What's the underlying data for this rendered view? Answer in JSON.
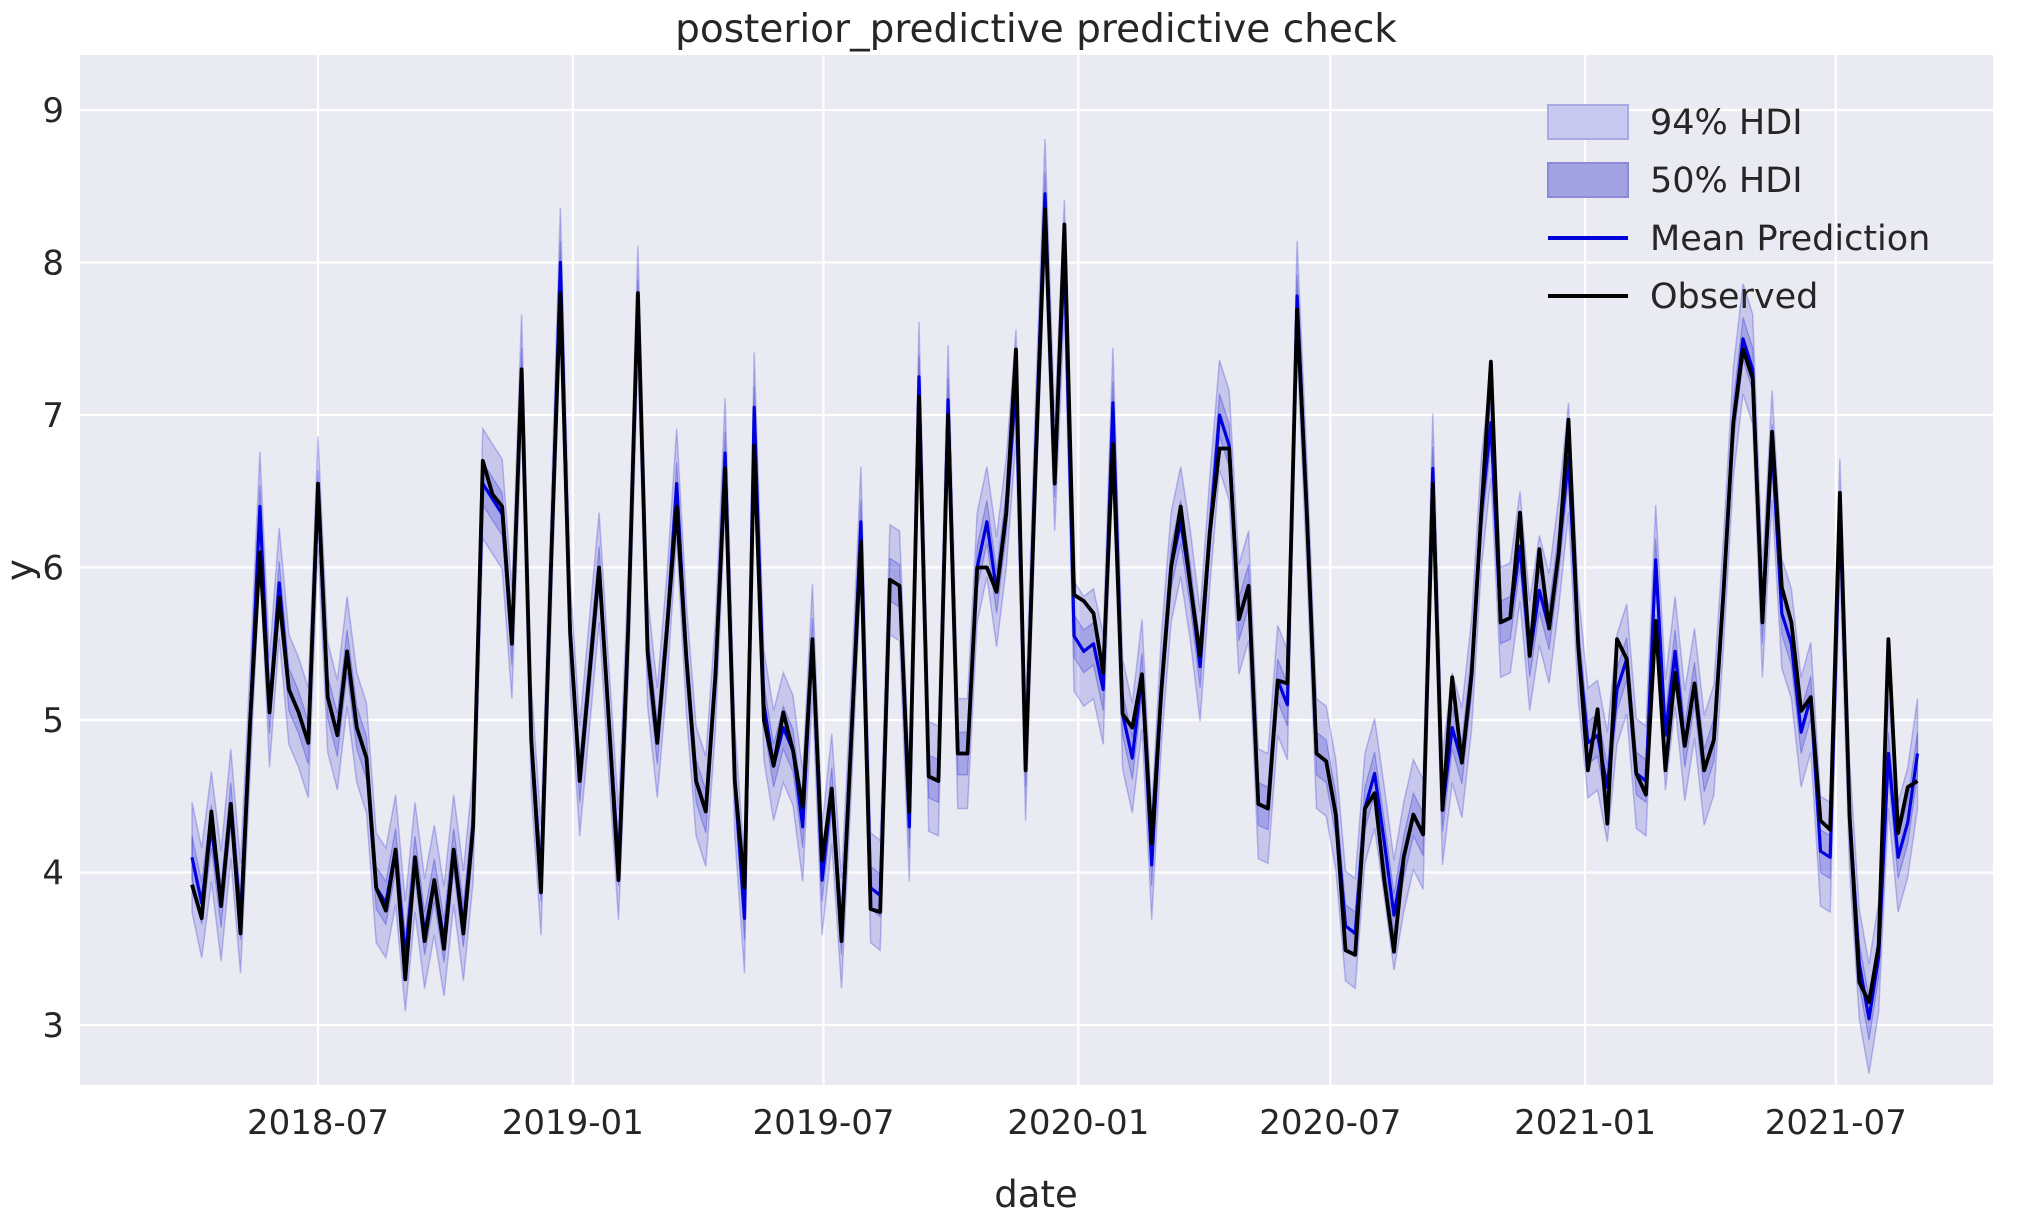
{
  "title": "posterior_predictive predictive check",
  "axes": {
    "xlabel": "date",
    "ylabel": "y",
    "yticks": [
      3,
      4,
      5,
      6,
      7,
      8,
      9
    ],
    "xticks": [
      {
        "label": "2018-07",
        "day": 91
      },
      {
        "label": "2019-01",
        "day": 275
      },
      {
        "label": "2019-07",
        "day": 456
      },
      {
        "label": "2020-01",
        "day": 640
      },
      {
        "label": "2020-07",
        "day": 822
      },
      {
        "label": "2021-01",
        "day": 1006
      },
      {
        "label": "2021-07",
        "day": 1187
      }
    ]
  },
  "legend": {
    "items": [
      {
        "label": "94% HDI",
        "swatch": "band-light"
      },
      {
        "label": "50% HDI",
        "swatch": "band-dark"
      },
      {
        "label": "Mean Prediction",
        "swatch": "blue-line"
      },
      {
        "label": "Observed",
        "swatch": "black-line"
      }
    ]
  },
  "colors": {
    "axes_background": "#eaeaf2",
    "grid": "#ffffff",
    "observed_line": "#000000",
    "mean_line": "#0000dd",
    "hdi_fill_base": "#0000cc",
    "hdi94_opacity": 0.15,
    "hdi50_opacity": 0.18,
    "text": "#262626"
  },
  "chart_data": {
    "type": "line",
    "title": "posterior_predictive predictive check",
    "xlabel": "date",
    "ylabel": "y",
    "ylim": [
      2.6,
      9.36
    ],
    "x_start_date": "2018-04-01",
    "x_interval_days": 7,
    "n_points": 179,
    "legend_position": "upper right",
    "grid": true,
    "hdi94_halfwidth": 0.36,
    "hdi50_halfwidth": 0.14,
    "series": [
      {
        "name": "Observed",
        "values": [
          3.92,
          3.7,
          4.4,
          3.78,
          4.45,
          3.6,
          5.0,
          6.1,
          5.05,
          5.8,
          5.2,
          5.05,
          4.85,
          6.55,
          5.15,
          4.9,
          5.45,
          4.95,
          4.75,
          3.9,
          3.75,
          4.15,
          3.3,
          4.1,
          3.55,
          3.95,
          3.5,
          4.15,
          3.6,
          4.3,
          6.7,
          6.48,
          6.4,
          5.5,
          7.3,
          4.87,
          3.87,
          5.95,
          7.8,
          5.58,
          4.6,
          5.3,
          6.0,
          5.0,
          3.95,
          5.6,
          7.8,
          5.45,
          4.85,
          5.6,
          6.4,
          5.4,
          4.6,
          4.4,
          5.3,
          6.65,
          4.6,
          3.9,
          6.8,
          5.0,
          4.7,
          5.05,
          4.8,
          4.43,
          5.53,
          4.08,
          4.55,
          3.55,
          4.87,
          6.17,
          3.76,
          3.74,
          5.92,
          5.88,
          4.4,
          7.12,
          4.63,
          4.6,
          7.0,
          4.78,
          4.78,
          6.0,
          6.0,
          5.84,
          6.36,
          7.43,
          4.67,
          6.6,
          8.35,
          6.55,
          8.25,
          5.82,
          5.78,
          5.7,
          5.31,
          6.81,
          5.04,
          4.95,
          5.3,
          4.19,
          5.2,
          6.0,
          6.4,
          5.88,
          5.42,
          6.23,
          6.78,
          6.78,
          5.66,
          5.88,
          4.45,
          4.42,
          5.26,
          5.24,
          7.69,
          6.36,
          4.78,
          4.73,
          4.38,
          3.49,
          3.46,
          4.42,
          4.52,
          3.95,
          3.48,
          4.1,
          4.38,
          4.25,
          6.55,
          4.41,
          5.28,
          4.72,
          5.3,
          6.35,
          7.35,
          5.64,
          5.67,
          6.36,
          5.42,
          6.12,
          5.6,
          6.1,
          6.97,
          5.49,
          4.67,
          5.07,
          4.32,
          5.53,
          5.4,
          4.65,
          4.51,
          5.65,
          4.67,
          5.31,
          4.83,
          5.24,
          4.67,
          4.87,
          5.85,
          6.95,
          7.43,
          7.24,
          5.64,
          6.89,
          5.87,
          5.64,
          5.06,
          5.15,
          4.34,
          4.28,
          6.49,
          4.37,
          3.28,
          3.15,
          3.52,
          5.53,
          4.26,
          4.56,
          4.6
        ]
      },
      {
        "name": "Mean Prediction",
        "values": [
          4.1,
          3.8,
          4.3,
          3.78,
          4.45,
          3.7,
          5.0,
          6.4,
          5.05,
          5.9,
          5.2,
          5.05,
          4.85,
          6.5,
          5.15,
          4.9,
          5.45,
          4.95,
          4.75,
          3.9,
          3.8,
          4.15,
          3.45,
          4.1,
          3.6,
          3.95,
          3.55,
          4.15,
          3.65,
          4.3,
          6.55,
          6.45,
          6.35,
          5.5,
          7.3,
          4.87,
          3.95,
          5.95,
          8.0,
          5.58,
          4.6,
          5.3,
          6.0,
          5.0,
          4.05,
          5.6,
          7.75,
          5.45,
          4.85,
          5.6,
          6.55,
          5.4,
          4.6,
          4.4,
          5.3,
          6.75,
          4.6,
          3.7,
          7.05,
          5.1,
          4.7,
          4.95,
          4.8,
          4.3,
          5.53,
          3.95,
          4.55,
          3.6,
          4.87,
          6.3,
          3.9,
          3.85,
          5.92,
          5.88,
          4.3,
          7.25,
          4.63,
          4.6,
          7.1,
          4.78,
          4.78,
          6.0,
          6.3,
          5.84,
          6.36,
          7.2,
          4.7,
          6.7,
          8.45,
          6.6,
          8.05,
          5.55,
          5.45,
          5.5,
          5.2,
          7.08,
          5.04,
          4.75,
          5.3,
          4.05,
          5.2,
          6.0,
          6.3,
          5.88,
          5.35,
          6.23,
          7.0,
          6.8,
          5.66,
          5.88,
          4.45,
          4.42,
          5.26,
          5.1,
          7.78,
          6.36,
          4.78,
          4.73,
          4.38,
          3.65,
          3.6,
          4.42,
          4.65,
          4.2,
          3.72,
          4.1,
          4.38,
          4.25,
          6.65,
          4.41,
          4.95,
          4.72,
          5.3,
          6.35,
          6.95,
          5.64,
          5.67,
          6.14,
          5.42,
          5.85,
          5.6,
          6.1,
          6.72,
          5.49,
          4.85,
          4.9,
          4.56,
          5.2,
          5.4,
          4.65,
          4.6,
          6.05,
          4.9,
          5.45,
          4.83,
          5.24,
          4.67,
          4.87,
          5.85,
          6.95,
          7.5,
          7.3,
          5.64,
          6.8,
          5.7,
          5.5,
          4.92,
          5.15,
          4.14,
          4.1,
          6.35,
          4.37,
          3.4,
          3.04,
          3.45,
          4.78,
          4.1,
          4.33,
          4.78
        ]
      }
    ]
  }
}
